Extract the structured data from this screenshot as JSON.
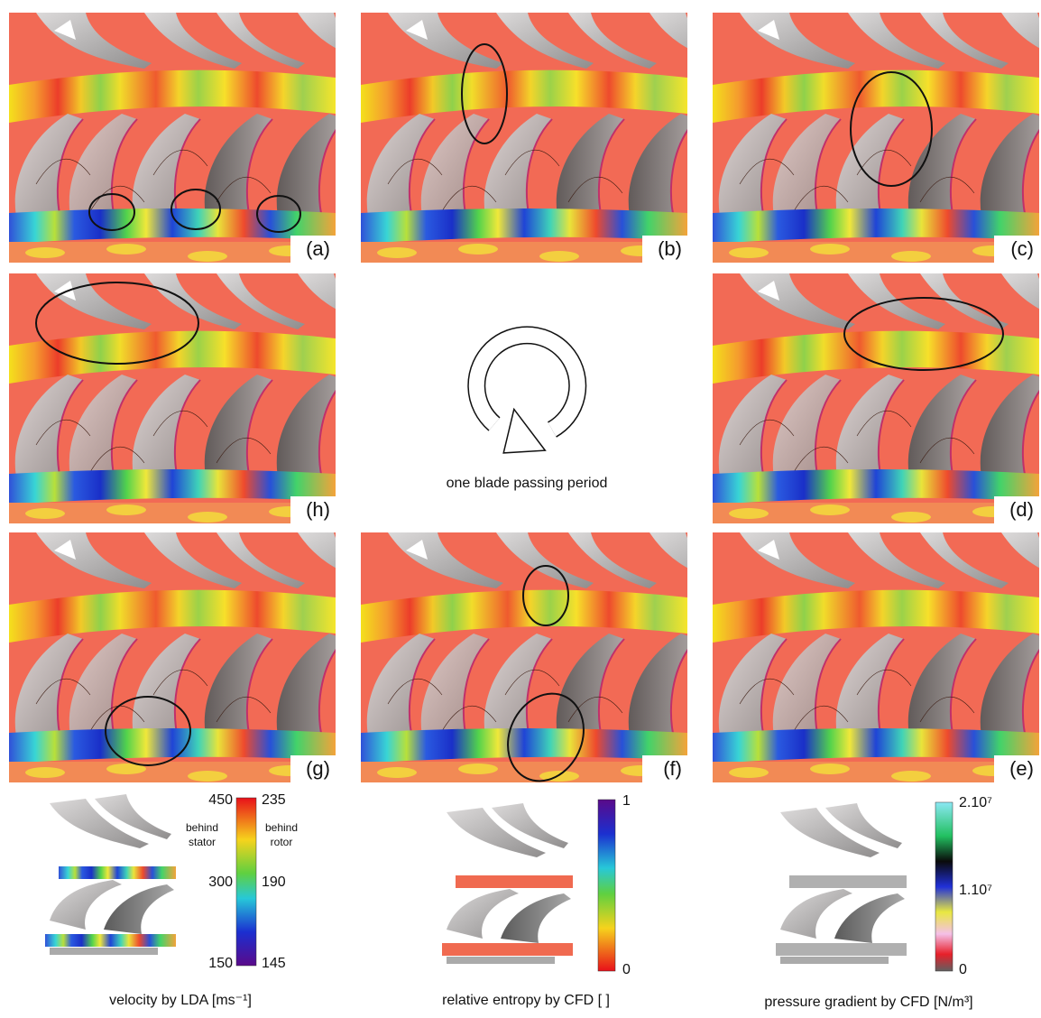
{
  "panels": [
    {
      "label": "(a)"
    },
    {
      "label": "(b)"
    },
    {
      "label": "(c)"
    },
    {
      "label": "(h)"
    },
    {
      "label": "(d)"
    },
    {
      "label": "(g)"
    },
    {
      "label": "(f)"
    },
    {
      "label": "(e)"
    }
  ],
  "center_caption": "one blade passing period",
  "legends": [
    {
      "title": "velocity by LDA [ms⁻¹]",
      "left_ticks": [
        "450",
        "300",
        "150"
      ],
      "right_ticks": [
        "235",
        "190",
        "145"
      ],
      "left_note": [
        "behind",
        "stator"
      ],
      "right_note": [
        "behind",
        "rotor"
      ]
    },
    {
      "title": "relative entropy by CFD [ ]",
      "ticks": [
        "1",
        "0"
      ]
    },
    {
      "title": "pressure gradient by CFD [N/m³]",
      "ticks": [
        "2.10⁷",
        "1.10⁷",
        "0"
      ]
    }
  ]
}
